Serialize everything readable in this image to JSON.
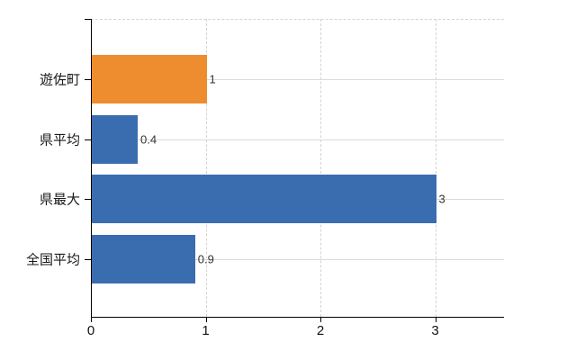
{
  "chart_data": {
    "type": "bar",
    "orientation": "horizontal",
    "categories": [
      "遊佐町",
      "県平均",
      "県最大",
      "全国平均"
    ],
    "values": [
      1,
      0.4,
      3,
      0.9
    ],
    "value_labels": [
      "1",
      "0.4",
      "3",
      "0.9"
    ],
    "bar_colors": [
      "#EE8D30",
      "#3A6DB0",
      "#3A6DB0",
      "#3A6DB0"
    ],
    "xlim": [
      0,
      3.6
    ],
    "x_ticks": [
      0,
      1,
      2,
      3
    ],
    "x_tick_labels": [
      "0",
      "1",
      "2",
      "3"
    ],
    "grid": {
      "vertical_lines": "dashed",
      "horizontal_category_lines": "solid",
      "top_border": "dashed"
    },
    "legend": null,
    "highlighted_category": "遊佐町"
  },
  "colors": {
    "background": "#ffffff",
    "axis": "#000000",
    "gridline_horizontal": "#d7ddd5",
    "gridline_vertical": "#d5d3d3",
    "bar_highlight": "#EE8D30",
    "bar_default": "#3A6DB0",
    "value_label_text": "#333333",
    "category_label_text": "#1a1a1a"
  }
}
